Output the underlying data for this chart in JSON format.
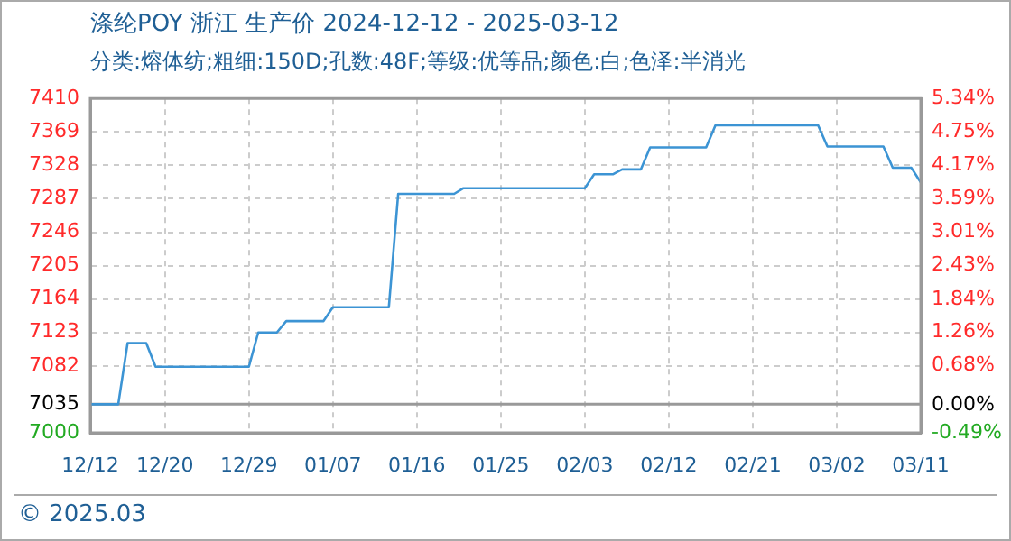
{
  "chart_data": {
    "type": "line",
    "title": "涤纶POY 浙江 生产价 2024-12-12 - 2025-03-12",
    "subtitle": "分类:熔体纺;粗细:150D;孔数:48F;等级:优等品;颜色:白;色泽:半消光",
    "annotations": [
      "© 2025.03"
    ],
    "x": [
      "2024-12-12",
      "2024-12-15",
      "2024-12-16",
      "2024-12-18",
      "2024-12-19",
      "2024-12-29",
      "2024-12-30",
      "2025-01-01",
      "2025-01-02",
      "2025-01-06",
      "2025-01-07",
      "2025-01-13",
      "2025-01-14",
      "2025-01-20",
      "2025-01-21",
      "2025-02-03",
      "2025-02-04",
      "2025-02-06",
      "2025-02-07",
      "2025-02-09",
      "2025-02-10",
      "2025-02-16",
      "2025-02-17",
      "2025-02-28",
      "2025-03-01",
      "2025-03-07",
      "2025-03-08",
      "2025-03-10",
      "2025-03-11"
    ],
    "series": [
      {
        "color": "#3c94d4",
        "values": [
          7035,
          7035,
          7110,
          7110,
          7081,
          7081,
          7123,
          7123,
          7137,
          7137,
          7154,
          7154,
          7293,
          7293,
          7300,
          7300,
          7317,
          7317,
          7323,
          7323,
          7350,
          7350,
          7377,
          7377,
          7351,
          7351,
          7325,
          7325,
          7307
        ]
      }
    ],
    "xlim": [
      "2024-12-12",
      "2025-03-11"
    ],
    "xticks": [
      {
        "value": "2024-12-12",
        "label": "12/12"
      },
      {
        "value": "2024-12-20",
        "label": "12/20"
      },
      {
        "value": "2024-12-29",
        "label": "12/29"
      },
      {
        "value": "2025-01-07",
        "label": "01/07"
      },
      {
        "value": "2025-01-16",
        "label": "01/16"
      },
      {
        "value": "2025-01-25",
        "label": "01/25"
      },
      {
        "value": "2025-02-03",
        "label": "02/03"
      },
      {
        "value": "2025-02-12",
        "label": "02/12"
      },
      {
        "value": "2025-02-21",
        "label": "02/21"
      },
      {
        "value": "2025-03-02",
        "label": "03/02"
      },
      {
        "value": "2025-03-11",
        "label": "03/11"
      }
    ],
    "ylim": [
      7000,
      7410
    ],
    "yticks": [
      7000,
      7035,
      7082,
      7123,
      7164,
      7205,
      7246,
      7287,
      7328,
      7369,
      7410
    ],
    "y2lim": [
      -0.49,
      5.34
    ],
    "y2ticks": [
      {
        "value": -0.49,
        "label": "-0.49%"
      },
      {
        "value": 0,
        "label": "0.00%"
      },
      {
        "value": 0.68,
        "label": "0.68%"
      },
      {
        "value": 1.26,
        "label": "1.26%"
      },
      {
        "value": 1.84,
        "label": "1.84%"
      },
      {
        "value": 2.43,
        "label": "2.43%"
      },
      {
        "value": 3.01,
        "label": "3.01%"
      },
      {
        "value": 3.59,
        "label": "3.59%"
      },
      {
        "value": 4.17,
        "label": "4.17%"
      },
      {
        "value": 4.75,
        "label": "4.75%"
      },
      {
        "value": 5.34,
        "label": "5.34%"
      }
    ],
    "ref_lines": [
      {
        "axis": "y",
        "value": 7035,
        "color": "#999999"
      }
    ],
    "grid": true,
    "legend": false,
    "marker": "none",
    "line_style": "solid"
  }
}
